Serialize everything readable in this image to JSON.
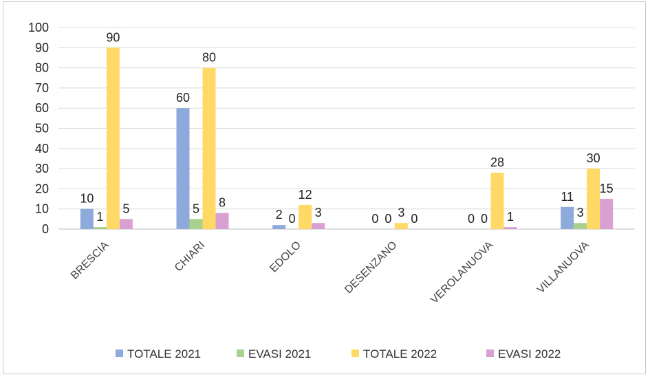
{
  "chart_data": {
    "type": "bar",
    "categories": [
      "BRESCIA",
      "CHIARI",
      "EDOLO",
      "DESENZANO",
      "VEROLANUOVA",
      "VILLANUOVA"
    ],
    "series": [
      {
        "name": "TOTALE 2021",
        "color": "#8eaadb",
        "values": [
          10,
          60,
          2,
          0,
          0,
          11
        ]
      },
      {
        "name": "EVASI 2021",
        "color": "#a9d18e",
        "values": [
          1,
          5,
          0,
          0,
          0,
          3
        ]
      },
      {
        "name": "TOTALE 2022",
        "color": "#ffd966",
        "values": [
          90,
          80,
          12,
          3,
          28,
          30
        ]
      },
      {
        "name": "EVASI 2022",
        "color": "#d9a1d1",
        "values": [
          5,
          8,
          3,
          0,
          1,
          15
        ]
      }
    ],
    "ylim": [
      0,
      100
    ],
    "yticks": [
      "0",
      "10",
      "20",
      "30",
      "40",
      "50",
      "60",
      "70",
      "80",
      "90",
      "100"
    ],
    "grid": true,
    "legend": "bottom",
    "data_labels": true
  }
}
